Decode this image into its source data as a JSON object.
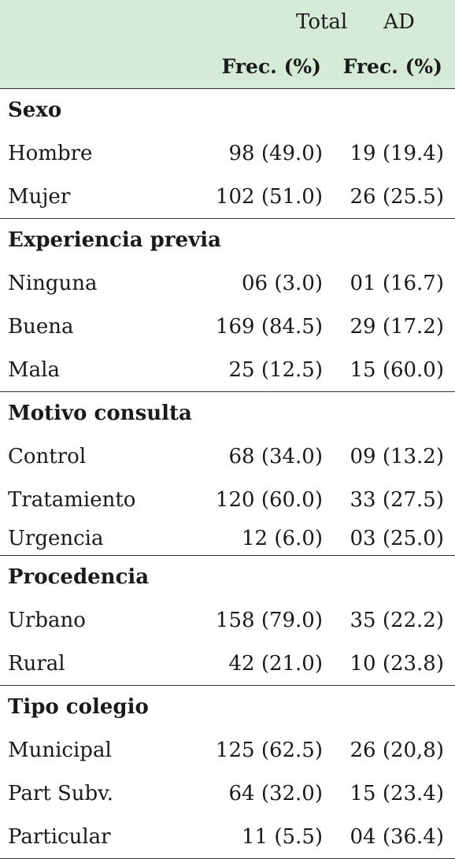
{
  "header": {
    "col_total": "Total",
    "col_ad": "AD",
    "sub_total": "Frec. (%)",
    "sub_ad": "Frec. (%)"
  },
  "sections": [
    {
      "title": "Sexo",
      "rows": [
        {
          "label": "Hombre",
          "total": "98 (49.0)",
          "ad": "19 (19.4)"
        },
        {
          "label": "Mujer",
          "total": "102 (51.0)",
          "ad": "26 (25.5)"
        }
      ]
    },
    {
      "title": "Experiencia previa",
      "rows": [
        {
          "label": "Ninguna",
          "total": "06 (3.0)",
          "ad": "01 (16.7)"
        },
        {
          "label": "Buena",
          "total": "169 (84.5)",
          "ad": "29 (17.2)"
        },
        {
          "label": "Mala",
          "total": "25 (12.5)",
          "ad": "15 (60.0)"
        }
      ]
    },
    {
      "title": "Motivo consulta",
      "rows": [
        {
          "label": "Control",
          "total": "68 (34.0)",
          "ad": "09 (13.2)"
        },
        {
          "label": "Tratamiento",
          "total": "120 (60.0)",
          "ad": "33 (27.5)"
        },
        {
          "label": "Urgencia",
          "total": "12 (6.0)",
          "ad": "03 (25.0)"
        }
      ]
    },
    {
      "title": "Procedencia",
      "rows": [
        {
          "label": "Urbano",
          "total": "158 (79.0)",
          "ad": "35 (22.2)"
        },
        {
          "label": "Rural",
          "total": "42 (21.0)",
          "ad": "10 (23.8)"
        }
      ]
    },
    {
      "title": "Tipo colegio",
      "rows": [
        {
          "label": "Municipal",
          "total": "125 (62.5)",
          "ad": "26 (20,8)"
        },
        {
          "label": "Part Subv.",
          "total": "64 (32.0)",
          "ad": "15 (23.4)"
        },
        {
          "label": "Particular",
          "total": "11 (5.5)",
          "ad": "04 (36.4)"
        }
      ]
    }
  ]
}
